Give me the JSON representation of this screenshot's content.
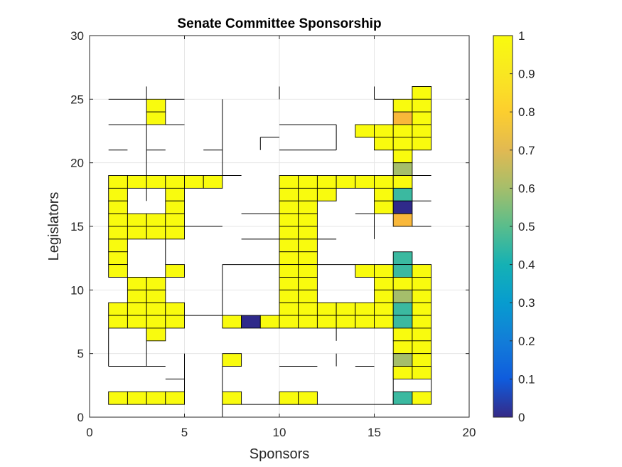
{
  "chart_data": {
    "type": "heatmap",
    "title": "Senate Committee Sponsorship",
    "xlabel": "Sponsors",
    "ylabel": "Legislators",
    "xlim": [
      0,
      20
    ],
    "ylim": [
      0,
      30
    ],
    "xticks": [
      0,
      5,
      10,
      15,
      20
    ],
    "yticks": [
      0,
      5,
      10,
      15,
      20,
      25,
      30
    ],
    "grid": true,
    "colorbar": {
      "position": "right",
      "range": [
        0,
        1
      ],
      "ticks": [
        0,
        0.1,
        0.2,
        0.3,
        0.4,
        0.5,
        0.6,
        0.7,
        0.8,
        0.9,
        1
      ],
      "tick_labels": [
        "0",
        "0.1",
        "0.2",
        "0.3",
        "0.4",
        "0.5",
        "0.6",
        "0.7",
        "0.8",
        "0.9",
        "1"
      ],
      "colormap": "parula"
    },
    "cells": [
      [
        3,
        24,
        1
      ],
      [
        3,
        23,
        1
      ],
      [
        17,
        25,
        1
      ],
      [
        16,
        24,
        1
      ],
      [
        17,
        24,
        1
      ],
      [
        16,
        23,
        0.83
      ],
      [
        17,
        23,
        1
      ],
      [
        14,
        22,
        1
      ],
      [
        15,
        22,
        1
      ],
      [
        16,
        22,
        1
      ],
      [
        17,
        22,
        1
      ],
      [
        15,
        21,
        1
      ],
      [
        16,
        21,
        1
      ],
      [
        17,
        21,
        1
      ],
      [
        16,
        20,
        1
      ],
      [
        16,
        19,
        0.7
      ],
      [
        1,
        18,
        1
      ],
      [
        2,
        18,
        1
      ],
      [
        3,
        18,
        1
      ],
      [
        4,
        18,
        1
      ],
      [
        5,
        18,
        1
      ],
      [
        6,
        18,
        1
      ],
      [
        10,
        18,
        1
      ],
      [
        11,
        18,
        1
      ],
      [
        12,
        18,
        1
      ],
      [
        13,
        18,
        1
      ],
      [
        14,
        18,
        1
      ],
      [
        15,
        18,
        1
      ],
      [
        16,
        18,
        1
      ],
      [
        1,
        17,
        1
      ],
      [
        4,
        17,
        1
      ],
      [
        10,
        17,
        1
      ],
      [
        11,
        17,
        1
      ],
      [
        12,
        17,
        1
      ],
      [
        15,
        17,
        1
      ],
      [
        16,
        17,
        0.52
      ],
      [
        1,
        16,
        1
      ],
      [
        4,
        16,
        1
      ],
      [
        10,
        16,
        1
      ],
      [
        11,
        16,
        1
      ],
      [
        15,
        16,
        1
      ],
      [
        16,
        16,
        0.02
      ],
      [
        1,
        15,
        1
      ],
      [
        2,
        15,
        1
      ],
      [
        3,
        15,
        1
      ],
      [
        4,
        15,
        1
      ],
      [
        10,
        15,
        1
      ],
      [
        11,
        15,
        1
      ],
      [
        16,
        15,
        0.8
      ],
      [
        1,
        14,
        1
      ],
      [
        2,
        14,
        1
      ],
      [
        3,
        14,
        1
      ],
      [
        4,
        14,
        1
      ],
      [
        10,
        14,
        1
      ],
      [
        11,
        14,
        1
      ],
      [
        1,
        13,
        1
      ],
      [
        10,
        13,
        1
      ],
      [
        11,
        13,
        1
      ],
      [
        1,
        12,
        1
      ],
      [
        10,
        12,
        1
      ],
      [
        11,
        12,
        1
      ],
      [
        16,
        12,
        0.52
      ],
      [
        1,
        11,
        1
      ],
      [
        4,
        11,
        1
      ],
      [
        10,
        11,
        1
      ],
      [
        11,
        11,
        1
      ],
      [
        14,
        11,
        1
      ],
      [
        15,
        11,
        1
      ],
      [
        16,
        11,
        0.52
      ],
      [
        17,
        11,
        1
      ],
      [
        2,
        10,
        1
      ],
      [
        3,
        10,
        1
      ],
      [
        10,
        10,
        1
      ],
      [
        11,
        10,
        1
      ],
      [
        15,
        10,
        1
      ],
      [
        16,
        10,
        1
      ],
      [
        17,
        10,
        1
      ],
      [
        2,
        9,
        1
      ],
      [
        3,
        9,
        1
      ],
      [
        10,
        9,
        1
      ],
      [
        11,
        9,
        1
      ],
      [
        15,
        9,
        1
      ],
      [
        16,
        9,
        0.7
      ],
      [
        17,
        9,
        1
      ],
      [
        1,
        8,
        1
      ],
      [
        2,
        8,
        1
      ],
      [
        3,
        8,
        1
      ],
      [
        4,
        8,
        1
      ],
      [
        10,
        8,
        1
      ],
      [
        11,
        8,
        1
      ],
      [
        12,
        8,
        1
      ],
      [
        13,
        8,
        1
      ],
      [
        14,
        8,
        1
      ],
      [
        15,
        8,
        1
      ],
      [
        16,
        8,
        0.52
      ],
      [
        17,
        8,
        1
      ],
      [
        1,
        7,
        1
      ],
      [
        2,
        7,
        1
      ],
      [
        3,
        7,
        1
      ],
      [
        4,
        7,
        1
      ],
      [
        7,
        7,
        1
      ],
      [
        8,
        7,
        0.02
      ],
      [
        9,
        7,
        1
      ],
      [
        10,
        7,
        1
      ],
      [
        11,
        7,
        1
      ],
      [
        12,
        7,
        1
      ],
      [
        13,
        7,
        1
      ],
      [
        14,
        7,
        1
      ],
      [
        15,
        7,
        1
      ],
      [
        16,
        7,
        0.52
      ],
      [
        17,
        7,
        1
      ],
      [
        3,
        6,
        1
      ],
      [
        16,
        6,
        1
      ],
      [
        17,
        6,
        1
      ],
      [
        16,
        5,
        1
      ],
      [
        17,
        5,
        1
      ],
      [
        7,
        4,
        1
      ],
      [
        16,
        4,
        0.7
      ],
      [
        17,
        4,
        1
      ],
      [
        16,
        3,
        1
      ],
      [
        17,
        3,
        1
      ],
      [
        1,
        1,
        1
      ],
      [
        2,
        1,
        1
      ],
      [
        3,
        1,
        1
      ],
      [
        4,
        1,
        1
      ],
      [
        7,
        1,
        1
      ],
      [
        10,
        1,
        1
      ],
      [
        11,
        1,
        1
      ],
      [
        16,
        1,
        0.52
      ],
      [
        17,
        1,
        1
      ]
    ],
    "edges": [
      [
        1,
        25,
        3,
        25
      ],
      [
        3,
        25,
        3,
        26
      ],
      [
        4,
        25,
        5,
        25
      ],
      [
        7,
        19,
        7,
        25
      ],
      [
        10,
        25,
        10,
        26
      ],
      [
        15,
        25,
        16,
        25
      ],
      [
        15,
        25,
        15,
        26
      ],
      [
        1,
        23,
        3,
        23
      ],
      [
        4,
        23,
        5,
        23
      ],
      [
        3,
        17,
        3,
        23
      ],
      [
        10,
        23,
        13,
        23
      ],
      [
        13,
        21,
        13,
        23
      ],
      [
        9,
        21,
        9,
        22
      ],
      [
        9,
        22,
        10,
        22
      ],
      [
        10,
        21,
        13,
        21
      ],
      [
        1,
        21,
        2,
        21
      ],
      [
        3,
        21,
        4,
        21
      ],
      [
        6,
        21,
        7,
        21
      ],
      [
        17,
        19,
        18,
        19
      ],
      [
        7,
        19,
        8,
        19
      ],
      [
        14,
        16,
        15,
        16
      ],
      [
        8,
        16,
        10,
        16
      ],
      [
        17,
        17,
        18,
        17
      ],
      [
        15,
        14,
        15,
        16
      ],
      [
        17,
        15,
        18,
        15
      ],
      [
        5,
        15,
        7,
        15
      ],
      [
        8,
        14,
        10,
        14
      ],
      [
        11,
        14,
        13,
        14
      ],
      [
        4,
        12,
        4,
        14
      ],
      [
        7,
        12,
        10,
        12
      ],
      [
        12,
        12,
        14,
        12
      ],
      [
        5,
        8,
        7,
        8
      ],
      [
        7,
        8,
        7,
        12
      ],
      [
        3,
        4,
        3,
        7
      ],
      [
        13,
        6,
        13,
        7
      ],
      [
        1,
        4,
        4,
        4
      ],
      [
        4,
        3,
        5,
        3
      ],
      [
        5,
        1,
        5,
        5
      ],
      [
        1,
        4,
        1,
        7
      ],
      [
        10,
        4,
        12,
        4
      ],
      [
        14,
        4,
        15,
        4
      ],
      [
        13,
        4,
        13,
        5
      ],
      [
        16,
        1,
        16,
        4
      ],
      [
        18,
        1,
        18,
        4
      ],
      [
        7,
        0,
        7,
        4
      ],
      [
        8,
        1,
        16,
        1
      ]
    ]
  }
}
